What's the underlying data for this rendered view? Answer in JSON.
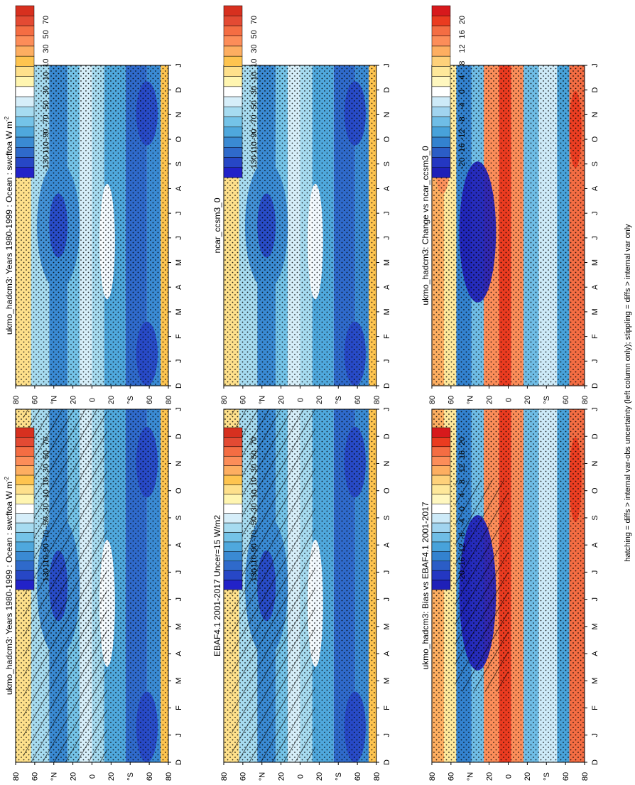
{
  "figure": {
    "footnote": "hatching = diffs > internal var-obs uncertainty (left column only); stippling = diffs > internal var only",
    "orientation": "rotated-90-clockwise"
  },
  "colors": {
    "abs": [
      "#d7301f",
      "#e34a33",
      "#f46d43",
      "#fc8d59",
      "#fdae61",
      "#fec44f",
      "#fee08b",
      "#fff5b0",
      "#ffffff",
      "#d6eef9",
      "#a6dbf0",
      "#74c3e8",
      "#4fa8dd",
      "#3a8ad3",
      "#2f6acb",
      "#2747c6",
      "#2222c8"
    ],
    "diff": [
      "#d7191c",
      "#ea3b20",
      "#f46d43",
      "#fc8d59",
      "#fdae61",
      "#fed17a",
      "#fee89a",
      "#fff7bf",
      "#ffffff",
      "#cdeaf8",
      "#a1d4ef",
      "#6fbde6",
      "#48a2da",
      "#3382cf",
      "#2b5dc6",
      "#2437c2",
      "#1f20b8"
    ]
  },
  "month_labels": [
    "D",
    "J",
    "F",
    "M",
    "A",
    "M",
    "J",
    "J",
    "A",
    "S",
    "O",
    "N",
    "D",
    "J"
  ],
  "lat_labels": [
    "80",
    "60",
    "°N",
    "20",
    "0",
    "20",
    "°S",
    "60",
    "80"
  ],
  "colorbar_abs_labels": [
    "70",
    "50",
    "30",
    "10",
    "-10",
    "-30",
    "-50",
    "-70",
    "-90",
    "-110",
    "-130"
  ],
  "colorbar_diff_labels": [
    "20",
    "16",
    "12",
    "8",
    "4",
    "0",
    "-4",
    "-8",
    "-12",
    "-16",
    "-20"
  ],
  "panels": {
    "model": "ukmo_hadcm3: Years 1980-1999 : Ocean : swcftoa W m",
    "model_sup": "-2",
    "obs": "EBAF4.1 2001-2017 Uncer=15 W/m2",
    "bias": "ukmo_hadcm3: Bias vs EBAF4.1 2001-2017",
    "model_copy": "ukmo_hadcm3: Years 1980-1999 : Ocean : swcftoa W m",
    "model_copy_sup": "-2",
    "compare": "ncar_ccsm3_0",
    "change": "ukmo_hadcm3: Change vs ncar_ccsm3_0"
  },
  "chart_data": [
    {
      "type": "heatmap",
      "title": "ukmo_hadcm3: Years 1980-1999 : Ocean : swcftoa W m-2",
      "x_axis": "month (D..J)",
      "y_axis": "latitude (80N..80S)",
      "units": "W m-2",
      "range": [
        -130,
        70
      ]
    },
    {
      "type": "heatmap",
      "title": "EBAF4.1 2001-2017 Uncer=15 W/m2",
      "x_axis": "month (D..J)",
      "y_axis": "latitude (80N..80S)",
      "units": "W m-2",
      "range": [
        -130,
        70
      ]
    },
    {
      "type": "heatmap",
      "title": "ukmo_hadcm3: Bias vs EBAF4.1 2001-2017",
      "x_axis": "month (D..J)",
      "y_axis": "latitude (80N..80S)",
      "units": "W m-2",
      "range": [
        -20,
        20
      ]
    },
    {
      "type": "heatmap",
      "title": "ukmo_hadcm3: Years 1980-1999 : Ocean : swcftoa W m-2",
      "x_axis": "month (D..J)",
      "y_axis": "latitude (80N..80S)",
      "units": "W m-2",
      "range": [
        -130,
        70
      ]
    },
    {
      "type": "heatmap",
      "title": "ncar_ccsm3_0",
      "x_axis": "month (D..J)",
      "y_axis": "latitude (80N..80S)",
      "units": "W m-2",
      "range": [
        -130,
        70
      ]
    },
    {
      "type": "heatmap",
      "title": "ukmo_hadcm3: Change vs ncar_ccsm3_0",
      "x_axis": "month (D..J)",
      "y_axis": "latitude (80N..80S)",
      "units": "W m-2",
      "range": [
        -20,
        20
      ]
    }
  ]
}
